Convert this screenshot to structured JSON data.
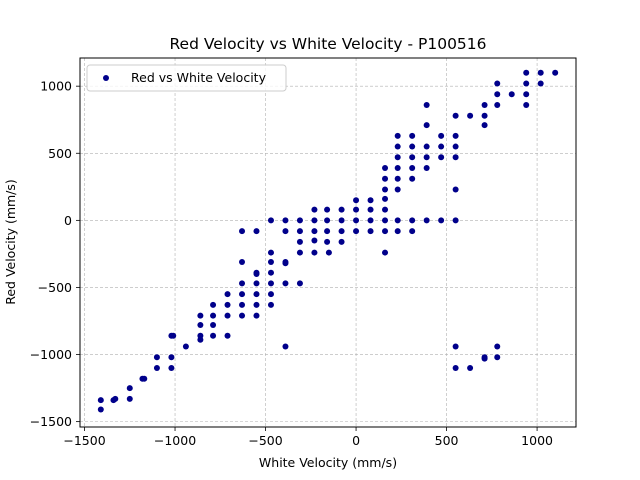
{
  "chart_data": {
    "type": "scatter",
    "title": "Red Velocity vs White Velocity - P100516",
    "xlabel": "White Velocity (mm/s)",
    "ylabel": "Red Velocity (mm/s)",
    "xlim": [
      -1525,
      1215
    ],
    "ylim": [
      -1540,
      1210
    ],
    "xticks": [
      -1500,
      -1000,
      -500,
      0,
      500,
      1000
    ],
    "yticks": [
      -1500,
      -1000,
      -500,
      0,
      500,
      1000
    ],
    "xtick_labels": [
      "−1500",
      "−1000",
      "−500",
      "0",
      "500",
      "1000"
    ],
    "ytick_labels": [
      "−1500",
      "−1000",
      "−500",
      "0",
      "500",
      "1000"
    ],
    "grid": true,
    "legend_position": "top-left",
    "colors": {
      "marker": "#00008b",
      "grid": "#b0b0b0"
    },
    "series": [
      {
        "name": "Red vs White Velocity",
        "points": [
          [
            -1410,
            -1340
          ],
          [
            -1410,
            -1410
          ],
          [
            -1330,
            -1330
          ],
          [
            -1340,
            -1340
          ],
          [
            -1250,
            -1250
          ],
          [
            -1250,
            -1330
          ],
          [
            -1180,
            -1180
          ],
          [
            -1170,
            -1180
          ],
          [
            -1100,
            -1020
          ],
          [
            -1100,
            -1100
          ],
          [
            -1020,
            -860
          ],
          [
            -1020,
            -1020
          ],
          [
            -1020,
            -1100
          ],
          [
            -1010,
            -860
          ],
          [
            -940,
            -940
          ],
          [
            -860,
            -710
          ],
          [
            -860,
            -780
          ],
          [
            -860,
            -860
          ],
          [
            -860,
            -890
          ],
          [
            -790,
            -630
          ],
          [
            -790,
            -710
          ],
          [
            -790,
            -780
          ],
          [
            -790,
            -860
          ],
          [
            -710,
            -550
          ],
          [
            -710,
            -630
          ],
          [
            -710,
            -710
          ],
          [
            -710,
            -860
          ],
          [
            -630,
            -80
          ],
          [
            -630,
            -310
          ],
          [
            -630,
            -470
          ],
          [
            -630,
            -550
          ],
          [
            -630,
            -630
          ],
          [
            -630,
            -710
          ],
          [
            -550,
            -80
          ],
          [
            -550,
            -390
          ],
          [
            -550,
            -400
          ],
          [
            -550,
            -470
          ],
          [
            -550,
            -550
          ],
          [
            -550,
            -630
          ],
          [
            -550,
            -710
          ],
          [
            -470,
            0
          ],
          [
            -470,
            -240
          ],
          [
            -470,
            -310
          ],
          [
            -470,
            -390
          ],
          [
            -470,
            -470
          ],
          [
            -470,
            -550
          ],
          [
            -470,
            -630
          ],
          [
            -390,
            0
          ],
          [
            -390,
            -80
          ],
          [
            -390,
            -310
          ],
          [
            -390,
            -320
          ],
          [
            -390,
            -470
          ],
          [
            -390,
            -940
          ],
          [
            -310,
            0
          ],
          [
            -310,
            -80
          ],
          [
            -310,
            -160
          ],
          [
            -310,
            -240
          ],
          [
            -310,
            -470
          ],
          [
            -230,
            0
          ],
          [
            -230,
            80
          ],
          [
            -230,
            -80
          ],
          [
            -230,
            -150
          ],
          [
            -230,
            -240
          ],
          [
            -160,
            0
          ],
          [
            -160,
            80
          ],
          [
            -160,
            -80
          ],
          [
            -160,
            -160
          ],
          [
            -150,
            -240
          ],
          [
            -80,
            0
          ],
          [
            -80,
            80
          ],
          [
            -80,
            -80
          ],
          [
            -80,
            -160
          ],
          [
            0,
            0
          ],
          [
            0,
            80
          ],
          [
            0,
            150
          ],
          [
            0,
            -80
          ],
          [
            80,
            0
          ],
          [
            80,
            80
          ],
          [
            80,
            150
          ],
          [
            80,
            -80
          ],
          [
            160,
            0
          ],
          [
            160,
            80
          ],
          [
            160,
            160
          ],
          [
            160,
            230
          ],
          [
            160,
            310
          ],
          [
            160,
            390
          ],
          [
            160,
            -80
          ],
          [
            160,
            -240
          ],
          [
            230,
            0
          ],
          [
            230,
            230
          ],
          [
            230,
            310
          ],
          [
            230,
            390
          ],
          [
            230,
            470
          ],
          [
            230,
            550
          ],
          [
            230,
            630
          ],
          [
            230,
            -80
          ],
          [
            310,
            0
          ],
          [
            310,
            310
          ],
          [
            310,
            390
          ],
          [
            310,
            470
          ],
          [
            310,
            550
          ],
          [
            310,
            630
          ],
          [
            310,
            -80
          ],
          [
            390,
            0
          ],
          [
            390,
            390
          ],
          [
            390,
            470
          ],
          [
            390,
            550
          ],
          [
            390,
            710
          ],
          [
            390,
            860
          ],
          [
            470,
            0
          ],
          [
            470,
            470
          ],
          [
            470,
            550
          ],
          [
            470,
            630
          ],
          [
            550,
            0
          ],
          [
            550,
            230
          ],
          [
            550,
            470
          ],
          [
            550,
            550
          ],
          [
            550,
            630
          ],
          [
            550,
            780
          ],
          [
            550,
            -940
          ],
          [
            550,
            -1100
          ],
          [
            630,
            780
          ],
          [
            630,
            -1100
          ],
          [
            710,
            710
          ],
          [
            710,
            780
          ],
          [
            710,
            860
          ],
          [
            710,
            -1020
          ],
          [
            710,
            -1030
          ],
          [
            780,
            860
          ],
          [
            780,
            940
          ],
          [
            780,
            1020
          ],
          [
            780,
            -940
          ],
          [
            780,
            -1020
          ],
          [
            860,
            940
          ],
          [
            940,
            860
          ],
          [
            940,
            940
          ],
          [
            940,
            1020
          ],
          [
            940,
            1100
          ],
          [
            1020,
            1020
          ],
          [
            1020,
            1100
          ],
          [
            1100,
            1100
          ]
        ]
      }
    ]
  }
}
